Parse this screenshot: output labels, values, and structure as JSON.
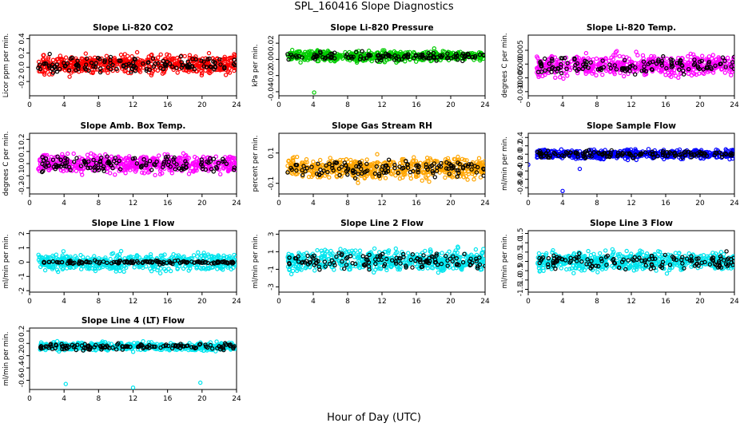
{
  "figure": {
    "title": "SPL_160416  Slope Diagnostics",
    "x_axis_title": "Hour of Day (UTC)"
  },
  "chart_data": [
    {
      "type": "scatter",
      "title": "Slope Li-820 CO2",
      "ylabel": "Licor ppm per min.",
      "color": "#ff0000",
      "xlim": [
        0,
        24
      ],
      "ylim": [
        -0.4,
        0.45
      ],
      "x_ticks": [
        0,
        4,
        8,
        12,
        16,
        20,
        24
      ],
      "y_ticks": [
        -0.2,
        0.0,
        0.2,
        0.4
      ],
      "y_tick_labels": [
        "-0.2",
        "0.0",
        "0.2",
        "0.4"
      ],
      "center": 0.04,
      "spread": 0.12,
      "points": "~600 per series (illustrative)",
      "series": [
        {
          "name": "",
          "color": "#ff0000"
        },
        {
          "name": "",
          "color": "#000000"
        }
      ]
    },
    {
      "type": "scatter",
      "title": "Slope Li-820 Pressure",
      "ylabel": "kPa per min.",
      "color": "#00cc00",
      "xlim": [
        0,
        24
      ],
      "ylim": [
        -0.045,
        0.03
      ],
      "x_ticks": [
        0,
        4,
        8,
        12,
        16,
        20,
        24
      ],
      "y_ticks": [
        -0.04,
        -0.02,
        0.0,
        0.02
      ],
      "y_tick_labels": [
        "-0.04",
        "-0.02",
        "0.00",
        "0.02"
      ],
      "center": 0.004,
      "spread": 0.006,
      "outliers": [
        [
          4.1,
          -0.041
        ]
      ],
      "series": [
        {
          "name": "",
          "color": "#00cc00"
        },
        {
          "name": "",
          "color": "#000000"
        }
      ]
    },
    {
      "type": "scatter",
      "title": "Slope Li-820 Temp.",
      "ylabel": "degrees C per min.",
      "color": "#ff00ff",
      "xlim": [
        0,
        24
      ],
      "ylim": [
        -0.0115,
        0.0105
      ],
      "x_ticks": [
        0,
        4,
        8,
        12,
        16,
        20,
        24
      ],
      "y_ticks": [
        -0.01,
        -0.005,
        0.0,
        0.005
      ],
      "y_tick_labels": [
        "-0.010",
        "-0.005",
        "0.000",
        "0.005"
      ],
      "center": -0.0005,
      "spread": 0.0035,
      "series": [
        {
          "name": "",
          "color": "#ff00ff"
        },
        {
          "name": "",
          "color": "#000000"
        }
      ]
    },
    {
      "type": "scatter",
      "title": "Slope Amb. Box Temp.",
      "ylabel": "degrees C per min.",
      "color": "#ff00ff",
      "xlim": [
        0,
        24
      ],
      "ylim": [
        -0.25,
        0.25
      ],
      "x_ticks": [
        0,
        4,
        8,
        12,
        16,
        20,
        24
      ],
      "y_ticks": [
        -0.2,
        -0.1,
        0.0,
        0.1,
        0.2
      ],
      "y_tick_labels": [
        "-0.2",
        "-0.1",
        "0.0",
        "0.1",
        "0.2"
      ],
      "center": 0.0,
      "spread": 0.07,
      "series": [
        {
          "name": "",
          "color": "#ff00ff"
        },
        {
          "name": "",
          "color": "#000000"
        }
      ]
    },
    {
      "type": "scatter",
      "title": "Slope Gas Stream RH",
      "ylabel": "percent per min.",
      "color": "#ffa500",
      "xlim": [
        0,
        24
      ],
      "ylim": [
        -0.17,
        0.23
      ],
      "x_ticks": [
        0,
        4,
        8,
        12,
        16,
        20,
        24
      ],
      "y_ticks": [
        -0.1,
        0.1
      ],
      "y_tick_labels": [
        "-0.1",
        "0.1"
      ],
      "center": 0.0,
      "spread": 0.065,
      "series": [
        {
          "name": "",
          "color": "#ffa500"
        },
        {
          "name": "",
          "color": "#000000"
        }
      ]
    },
    {
      "type": "scatter",
      "title": "Slope Sample Flow",
      "ylabel": "ml/min per min.",
      "color": "#0000ff",
      "xlim": [
        0,
        24
      ],
      "ylim": [
        -0.95,
        0.5
      ],
      "x_ticks": [
        0,
        4,
        8,
        12,
        16,
        20,
        24
      ],
      "y_ticks": [
        -0.8,
        -0.6,
        -0.4,
        -0.2,
        0.0,
        0.2,
        0.4
      ],
      "y_tick_labels": [
        "-0.8",
        "-0.6",
        "-0.4",
        "-0.2",
        "0.0",
        "0.2",
        "0.4"
      ],
      "center": 0.0,
      "spread": 0.1,
      "outliers": [
        [
          4.0,
          -0.88
        ],
        [
          0.0,
          -0.25
        ],
        [
          6.0,
          -0.35
        ]
      ],
      "series": [
        {
          "name": "",
          "color": "#0000ff"
        },
        {
          "name": "",
          "color": "#000000"
        }
      ]
    },
    {
      "type": "scatter",
      "title": "Slope Line 1 Flow",
      "ylabel": "ml/min per min.",
      "color": "#00e5ee",
      "xlim": [
        0,
        24
      ],
      "ylim": [
        -2.1,
        2.2
      ],
      "x_ticks": [
        0,
        4,
        8,
        12,
        16,
        20,
        24
      ],
      "y_ticks": [
        -2,
        -1,
        0,
        1,
        2
      ],
      "y_tick_labels": [
        "-2",
        "-1",
        "0",
        "1",
        "2"
      ],
      "center": 0.0,
      "spread": 0.55,
      "black_spread": 0.1,
      "series": [
        {
          "name": "",
          "color": "#00e5ee"
        },
        {
          "name": "",
          "color": "#000000"
        }
      ]
    },
    {
      "type": "scatter",
      "title": "Slope Line 2 Flow",
      "ylabel": "ml/min per min.",
      "color": "#00e5ee",
      "xlim": [
        0,
        24
      ],
      "ylim": [
        -3.6,
        3.4
      ],
      "x_ticks": [
        0,
        4,
        8,
        12,
        16,
        20,
        24
      ],
      "y_ticks": [
        -3,
        -1,
        1,
        3
      ],
      "y_tick_labels": [
        "-3",
        "-1",
        "1",
        "3"
      ],
      "center": 0.0,
      "spread": 1.1,
      "series": [
        {
          "name": "",
          "color": "#00e5ee"
        },
        {
          "name": "",
          "color": "#000000"
        }
      ]
    },
    {
      "type": "scatter",
      "title": "Slope Line 3 Flow",
      "ylabel": "ml/min per min.",
      "color": "#00e5ee",
      "xlim": [
        0,
        24
      ],
      "ylim": [
        -1.65,
        1.65
      ],
      "x_ticks": [
        0,
        4,
        8,
        12,
        16,
        20,
        24
      ],
      "y_ticks": [
        -1.5,
        -1.0,
        -0.5,
        0.0,
        0.5,
        1.0,
        1.5
      ],
      "y_tick_labels": [
        "-1.5",
        "-1.0",
        "-0.5",
        "0.0",
        "0.5",
        "1.0",
        "1.5"
      ],
      "center": 0.0,
      "spread": 0.45,
      "series": [
        {
          "name": "",
          "color": "#00e5ee"
        },
        {
          "name": "",
          "color": "#000000"
        }
      ]
    },
    {
      "type": "scatter",
      "title": "Slope Line 4 (LT) Flow",
      "ylabel": "ml/min per min.",
      "color": "#00e5ee",
      "xlim": [
        0,
        24
      ],
      "ylim": [
        -0.75,
        0.25
      ],
      "x_ticks": [
        0,
        4,
        8,
        12,
        16,
        20,
        24
      ],
      "y_ticks": [
        -0.6,
        -0.4,
        -0.2,
        0.0,
        0.2
      ],
      "y_tick_labels": [
        "-0.6",
        "-0.4",
        "-0.2",
        "0.0",
        "0.2"
      ],
      "center": -0.05,
      "spread": 0.06,
      "outliers": [
        [
          4.2,
          -0.66
        ],
        [
          12.0,
          -0.72
        ],
        [
          19.8,
          -0.64
        ]
      ],
      "series": [
        {
          "name": "",
          "color": "#00e5ee"
        },
        {
          "name": "",
          "color": "#000000"
        }
      ]
    }
  ]
}
